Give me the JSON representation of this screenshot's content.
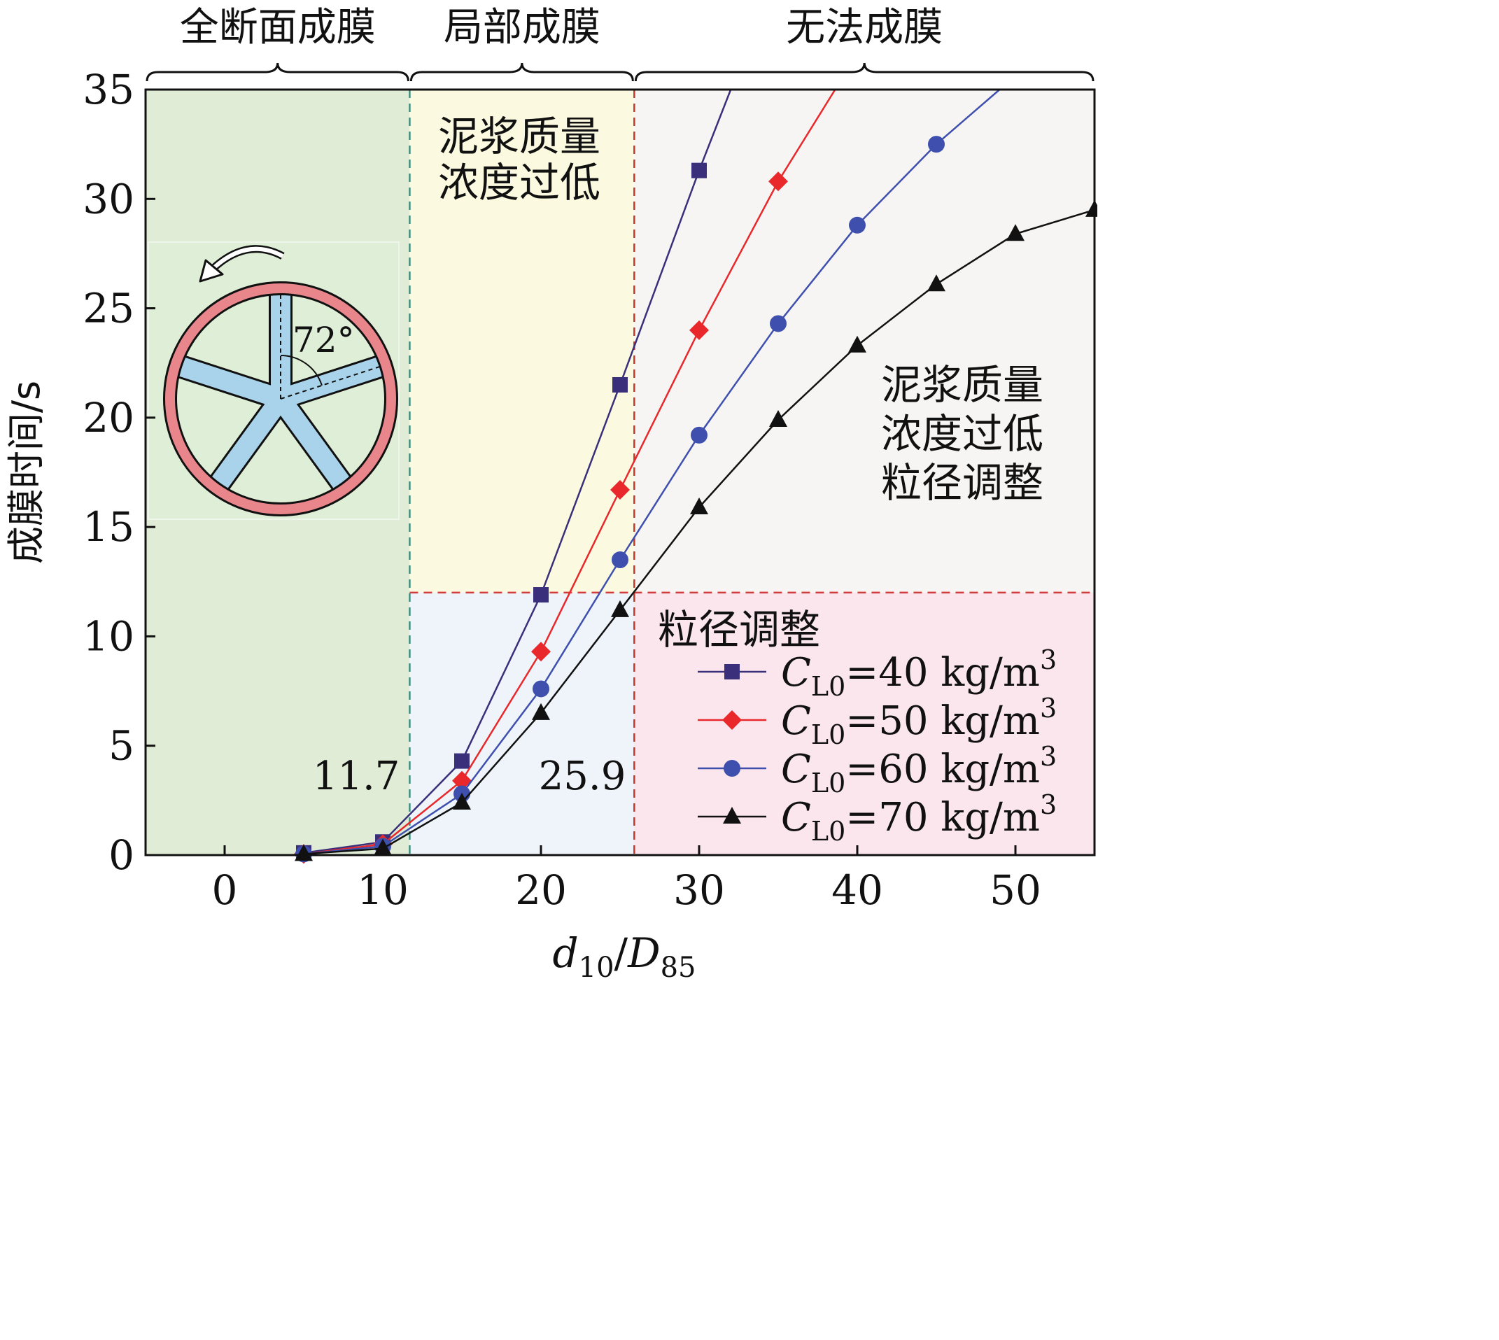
{
  "chart_data": {
    "type": "line",
    "title": "",
    "xlabel": "d10/D85",
    "xlabel_parts": {
      "main1": "d",
      "sub1": "10",
      "slash": "/",
      "main2": "D",
      "sub2": "85"
    },
    "ylabel": "成膜时间/s",
    "xlim": [
      -5,
      55
    ],
    "ylim": [
      0,
      35
    ],
    "xticks": [
      0,
      10,
      20,
      30,
      40,
      50
    ],
    "yticks": [
      0,
      5,
      10,
      15,
      20,
      25,
      30,
      35
    ],
    "grid": false,
    "legend_position": "bottom-right",
    "zones": [
      {
        "label": "全断面成膜",
        "x_from": -5,
        "x_to": 11.7,
        "color": "#e0ecd6"
      },
      {
        "label": "局部成膜",
        "x_from": 11.7,
        "x_to": 25.9,
        "color": "#fbfae0"
      },
      {
        "label": "无法成膜",
        "x_from": 25.9,
        "x_to": 55,
        "color": "#f6f5f3"
      }
    ],
    "lower_zone_colors": {
      "partial": "#eef4f9",
      "none": "#fbe6ee"
    },
    "threshold_y": 12,
    "boundary_lines": [
      {
        "x": 11.7,
        "label": "11.7",
        "color": "#3f8f7f"
      },
      {
        "x": 25.9,
        "label": "25.9",
        "color": "#c0392b"
      }
    ],
    "annotations": [
      {
        "id": "partial-upper",
        "lines": [
          "泥浆质量",
          "浓度过低"
        ]
      },
      {
        "id": "partial-lower",
        "lines": [
          "粒径调整"
        ]
      },
      {
        "id": "none-upper",
        "lines": [
          "泥浆质量",
          "浓度过低",
          "粒径调整"
        ]
      }
    ],
    "series": [
      {
        "name": "CL0=40 kg/m3",
        "label_parts": {
          "c": "C",
          "sub": "L0",
          "eq": "=40 kg/m",
          "sup": "3"
        },
        "color": "#3a2f7a",
        "marker": "square",
        "x": [
          5,
          10,
          15,
          20,
          25,
          30
        ],
        "y": [
          0.1,
          0.6,
          4.3,
          11.9,
          21.5,
          31.3
        ],
        "extend_to": {
          "x": 32,
          "y": 35
        }
      },
      {
        "name": "CL0=50 kg/m3",
        "label_parts": {
          "c": "C",
          "sub": "L0",
          "eq": "=50 kg/m",
          "sup": "3"
        },
        "color": "#e8282b",
        "marker": "diamond",
        "x": [
          5,
          10,
          15,
          20,
          25,
          30,
          35
        ],
        "y": [
          0.05,
          0.5,
          3.4,
          9.3,
          16.7,
          24.0,
          30.8
        ],
        "extend_to": {
          "x": 38.6,
          "y": 35
        }
      },
      {
        "name": "CL0=60 kg/m3",
        "label_parts": {
          "c": "C",
          "sub": "L0",
          "eq": "=60 kg/m",
          "sup": "3"
        },
        "color": "#3e4fae",
        "marker": "circle",
        "x": [
          5,
          10,
          15,
          20,
          25,
          30,
          35,
          40,
          45
        ],
        "y": [
          0.05,
          0.4,
          2.8,
          7.6,
          13.5,
          19.2,
          24.3,
          28.8,
          32.5
        ],
        "extend_to": {
          "x": 49,
          "y": 35
        }
      },
      {
        "name": "CL0=70 kg/m3",
        "label_parts": {
          "c": "C",
          "sub": "L0",
          "eq": "=70 kg/m",
          "sup": "3"
        },
        "color": "#111111",
        "marker": "triangle",
        "x": [
          5,
          10,
          15,
          20,
          25,
          30,
          35,
          40,
          45,
          50,
          55
        ],
        "y": [
          0.05,
          0.3,
          2.4,
          6.5,
          11.2,
          15.9,
          19.9,
          23.3,
          26.1,
          28.4,
          29.5
        ]
      }
    ],
    "inset": {
      "angle_label": "72°",
      "ring_color": "#e8868c",
      "spoke_color": "#a9d3ea"
    }
  }
}
